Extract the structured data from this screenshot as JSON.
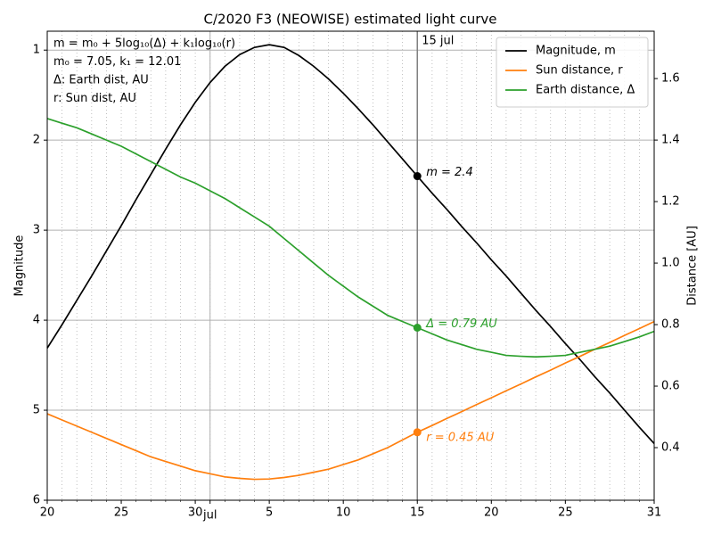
{
  "chart_data": {
    "type": "line",
    "title": "C/2020 F3 (NEOWISE) estimated light curve",
    "ylabel": "Magnitude",
    "y2label": "Distance [AU]",
    "x": [
      171,
      172,
      173,
      174,
      175,
      176,
      177,
      178,
      179,
      180,
      181,
      182,
      183,
      184,
      185,
      186,
      187,
      188,
      189,
      190,
      191,
      192,
      193,
      194,
      195,
      196,
      197,
      198,
      199,
      200,
      201,
      202,
      203,
      204,
      205,
      206,
      207,
      208,
      209,
      210,
      211,
      212
    ],
    "xlim": [
      171,
      212
    ],
    "xticks": [
      {
        "value": 171,
        "label": "20"
      },
      {
        "value": 176,
        "label": "25"
      },
      {
        "value": 181,
        "label": "30"
      },
      {
        "value": 182,
        "label": "jul"
      },
      {
        "value": 186,
        "label": "5"
      },
      {
        "value": 191,
        "label": "10"
      },
      {
        "value": 196,
        "label": "15"
      },
      {
        "value": 201,
        "label": "20"
      },
      {
        "value": 206,
        "label": "25"
      },
      {
        "value": 212,
        "label": "31"
      }
    ],
    "xmajorgrid": [
      182
    ],
    "xminorticks": [
      171,
      172,
      173,
      174,
      175,
      176,
      177,
      178,
      179,
      180,
      181,
      182,
      183,
      184,
      185,
      186,
      187,
      188,
      189,
      190,
      191,
      192,
      193,
      194,
      195,
      196,
      197,
      198,
      199,
      200,
      201,
      202,
      203,
      204,
      205,
      206,
      207,
      208,
      209,
      210,
      211,
      212
    ],
    "ylim": [
      0.79,
      6
    ],
    "y_inverted": true,
    "yticks": [
      1,
      2,
      3,
      4,
      5,
      6
    ],
    "y2lim": [
      0.229,
      1.754
    ],
    "y2ticks": [
      0.4,
      0.6,
      0.8,
      {
        "value": 1,
        "label": "1.0"
      },
      1.2,
      1.4,
      1.6
    ],
    "grid": true,
    "legend": "upper right",
    "highlight": {
      "x": 196,
      "label": "15 jul"
    },
    "annotations": [
      "m = m₀ + 5log₁₀(Δ) + k₁log₁₀(r)",
      "m₀ = 7.05, k₁ = 12.01",
      "Δ: Earth dist, AU",
      "r: Sun dist, AU"
    ],
    "series": [
      {
        "name": "Magnitude, m",
        "color": "#000000",
        "axis": "y",
        "marker_index": 25,
        "marker_label": "m = 2.4",
        "values": [
          4.31,
          4.05,
          3.78,
          3.51,
          3.23,
          2.95,
          2.66,
          2.38,
          2.1,
          1.83,
          1.58,
          1.36,
          1.18,
          1.05,
          0.97,
          0.94,
          0.97,
          1.06,
          1.18,
          1.32,
          1.48,
          1.65,
          1.83,
          2.02,
          2.21,
          2.4,
          2.59,
          2.77,
          2.96,
          3.14,
          3.33,
          3.51,
          3.7,
          3.89,
          4.07,
          4.26,
          4.44,
          4.63,
          4.81,
          5.0,
          5.19,
          5.37
        ]
      },
      {
        "name": "Sun distance, r",
        "color": "#ff7f0e",
        "axis": "y2",
        "marker_index": 25,
        "marker_label": "r = 0.45 AU",
        "values": [
          0.51,
          0.49,
          0.47,
          0.45,
          0.43,
          0.41,
          0.39,
          0.37,
          0.355,
          0.34,
          0.325,
          0.315,
          0.305,
          0.3,
          0.297,
          0.298,
          0.303,
          0.31,
          0.32,
          0.33,
          0.345,
          0.36,
          0.38,
          0.4,
          0.425,
          0.45,
          0.472,
          0.495,
          0.517,
          0.54,
          0.562,
          0.585,
          0.607,
          0.63,
          0.652,
          0.675,
          0.697,
          0.72,
          0.742,
          0.765,
          0.787,
          0.81
        ]
      },
      {
        "name": "Earth distance, Δ",
        "color": "#2ca02c",
        "axis": "y2",
        "marker_index": 25,
        "marker_label": "Δ = 0.79 AU",
        "values": [
          1.47,
          1.455,
          1.44,
          1.42,
          1.4,
          1.38,
          1.355,
          1.33,
          1.305,
          1.28,
          1.26,
          1.235,
          1.21,
          1.18,
          1.15,
          1.12,
          1.08,
          1.04,
          1.0,
          0.96,
          0.925,
          0.89,
          0.86,
          0.83,
          0.81,
          0.79,
          0.77,
          0.75,
          0.735,
          0.72,
          0.71,
          0.7,
          0.697,
          0.695,
          0.697,
          0.7,
          0.71,
          0.72,
          0.73,
          0.745,
          0.76,
          0.778
        ]
      }
    ]
  }
}
